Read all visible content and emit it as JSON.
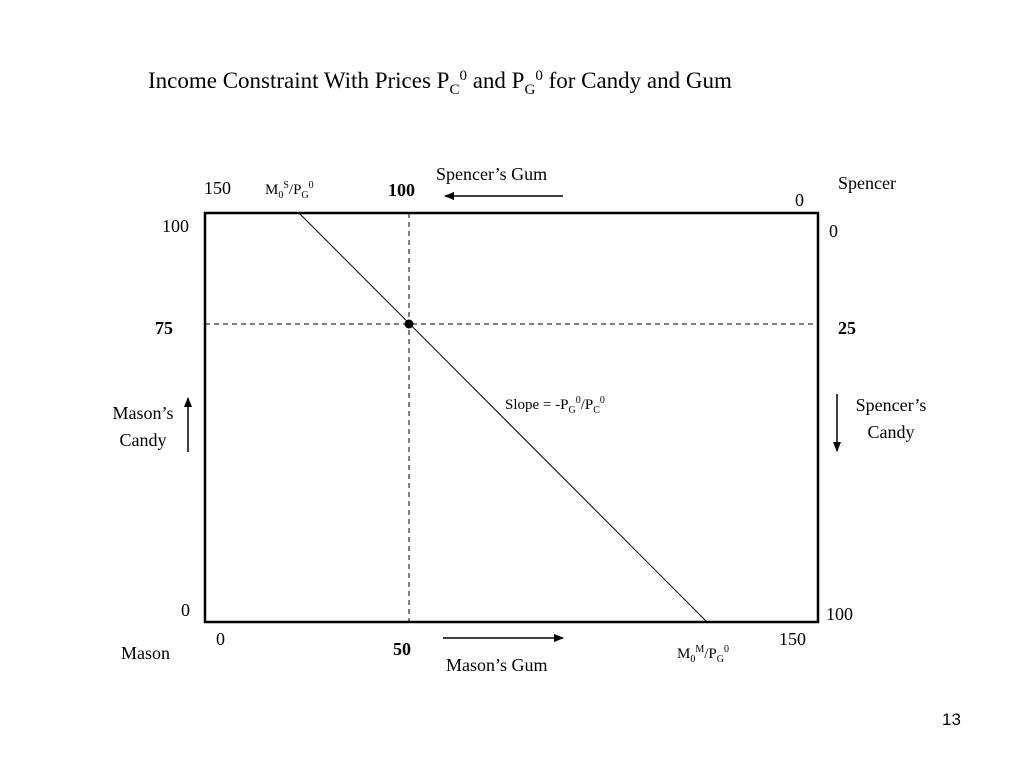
{
  "title": {
    "prefix": "Income Constraint With Prices P",
    "pc_sub": "C",
    "pc_sup": "0",
    "mid": " and P",
    "pg_sub": "G",
    "pg_sup": "0",
    "suffix": " for Candy and Gum"
  },
  "spencer": {
    "name": "Spencer",
    "gum_label": "Spencer’s Gum",
    "candy_line1": "Spencer’s",
    "candy_line2": "Candy",
    "top_left_tick": "150",
    "top_origin_tick": "0",
    "right_origin_tick": "0",
    "right_bottom_tick": "100",
    "gum_value": "100",
    "candy_value": "25",
    "intercept": {
      "m": "M",
      "m_sub": "0",
      "m_sup": "S",
      "slash": "/P",
      "p_sub": "G",
      "p_sup": "0"
    }
  },
  "mason": {
    "name": "Mason",
    "gum_label": "Mason’s Gum",
    "candy_line1": "Mason’s",
    "candy_line2": "Candy",
    "left_top_tick": "100",
    "left_origin_tick": "0",
    "bottom_origin_tick": "0",
    "bottom_right_tick": "150",
    "gum_value": "50",
    "candy_value": "75",
    "intercept": {
      "m": "M",
      "m_sub": "0",
      "m_sup": "M",
      "slash": "/P",
      "p_sub": "G",
      "p_sup": "0"
    }
  },
  "slope": {
    "prefix": "Slope = -P",
    "pg_sub": "G",
    "pg_sup": "0",
    "mid": "/P",
    "pc_sub": "C",
    "pc_sup": "0"
  },
  "page_number": "13"
}
